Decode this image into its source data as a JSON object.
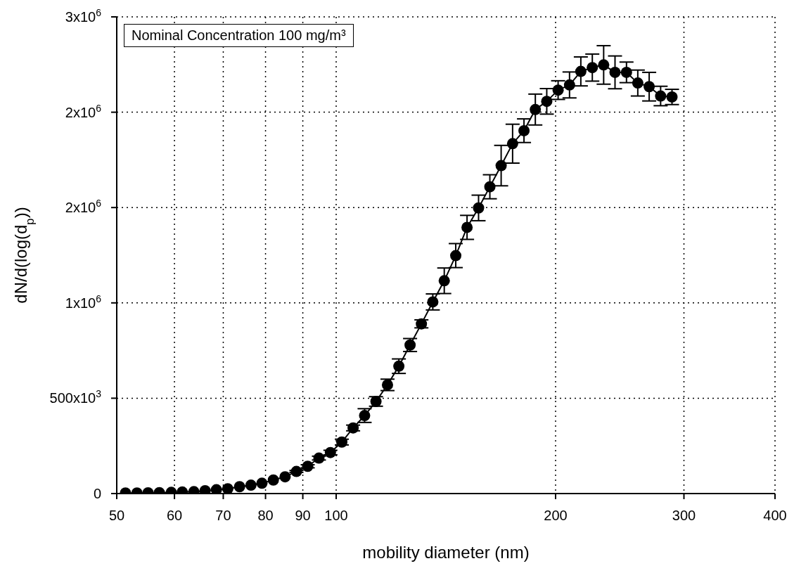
{
  "chart_data": {
    "type": "line",
    "xlabel": "mobility diameter (nm)",
    "ylabel": "dN/d(log(d$_{p}$))",
    "annotations": [
      "Nominal Concentration 100 mg/m³"
    ],
    "x": [
      51.4,
      53.3,
      55.2,
      57.2,
      59.4,
      61.5,
      63.8,
      66.1,
      68.5,
      71.0,
      73.7,
      76.4,
      79.1,
      82.0,
      85.1,
      88.2,
      91.4,
      94.7,
      98.2,
      101.8,
      105.5,
      109.4,
      113.4,
      117.6,
      121.9,
      126.3,
      130.9,
      135.7,
      140.7,
      145.9,
      151.2,
      156.8,
      162.5,
      168.4,
      174.6,
      181.0,
      187.6,
      194.5,
      201.6,
      209.0,
      216.6,
      224.6,
      232.8,
      241.3,
      250.2,
      259.3,
      268.8,
      278.7,
      288.9
    ],
    "series": [
      {
        "color": "#000000",
        "values": [
          3000,
          3000,
          4000,
          5000,
          6000,
          8000,
          10000,
          15000,
          20000,
          25000,
          36000,
          44000,
          54000,
          71000,
          88000,
          116000,
          143000,
          186000,
          215000,
          270000,
          344000,
          409000,
          483000,
          570000,
          668000,
          779000,
          890000,
          1005000,
          1116000,
          1248000,
          1396000,
          1498000,
          1609000,
          1720000,
          1835000,
          1903000,
          2014000,
          2057000,
          2116000,
          2143000,
          2214000,
          2234000,
          2248000,
          2209000,
          2209000,
          2153000,
          2134000,
          2085000,
          2080000
        ],
        "errors": [
          null,
          null,
          null,
          null,
          null,
          null,
          null,
          null,
          null,
          null,
          null,
          null,
          null,
          null,
          null,
          5000,
          8000,
          10000,
          12000,
          15000,
          15000,
          36000,
          25000,
          30000,
          38000,
          34000,
          21000,
          42000,
          67000,
          63000,
          63000,
          67000,
          63000,
          106000,
          102000,
          62000,
          81000,
          67000,
          49000,
          68000,
          76000,
          71000,
          101000,
          86000,
          54000,
          68000,
          75000,
          51000,
          40000
        ]
      }
    ],
    "log": "x",
    "xlim": [
      50,
      400
    ],
    "xticks": [
      50,
      60,
      70,
      80,
      90,
      100,
      200,
      300,
      400
    ],
    "ylim": [
      0,
      2500000
    ],
    "yticks": [
      0,
      {
        "value": 500000,
        "label": "500x10$^{3}$"
      },
      {
        "value": 1000000,
        "label": "1x10$^{6}$"
      },
      {
        "value": 1500000,
        "label": "2x10$^{6}$"
      },
      {
        "value": 2000000,
        "label": "2x10$^{6}$"
      },
      {
        "value": 2500000,
        "label": "3x10$^{6}$"
      }
    ],
    "grid": true,
    "marker": "circle",
    "line_style": "solid"
  }
}
